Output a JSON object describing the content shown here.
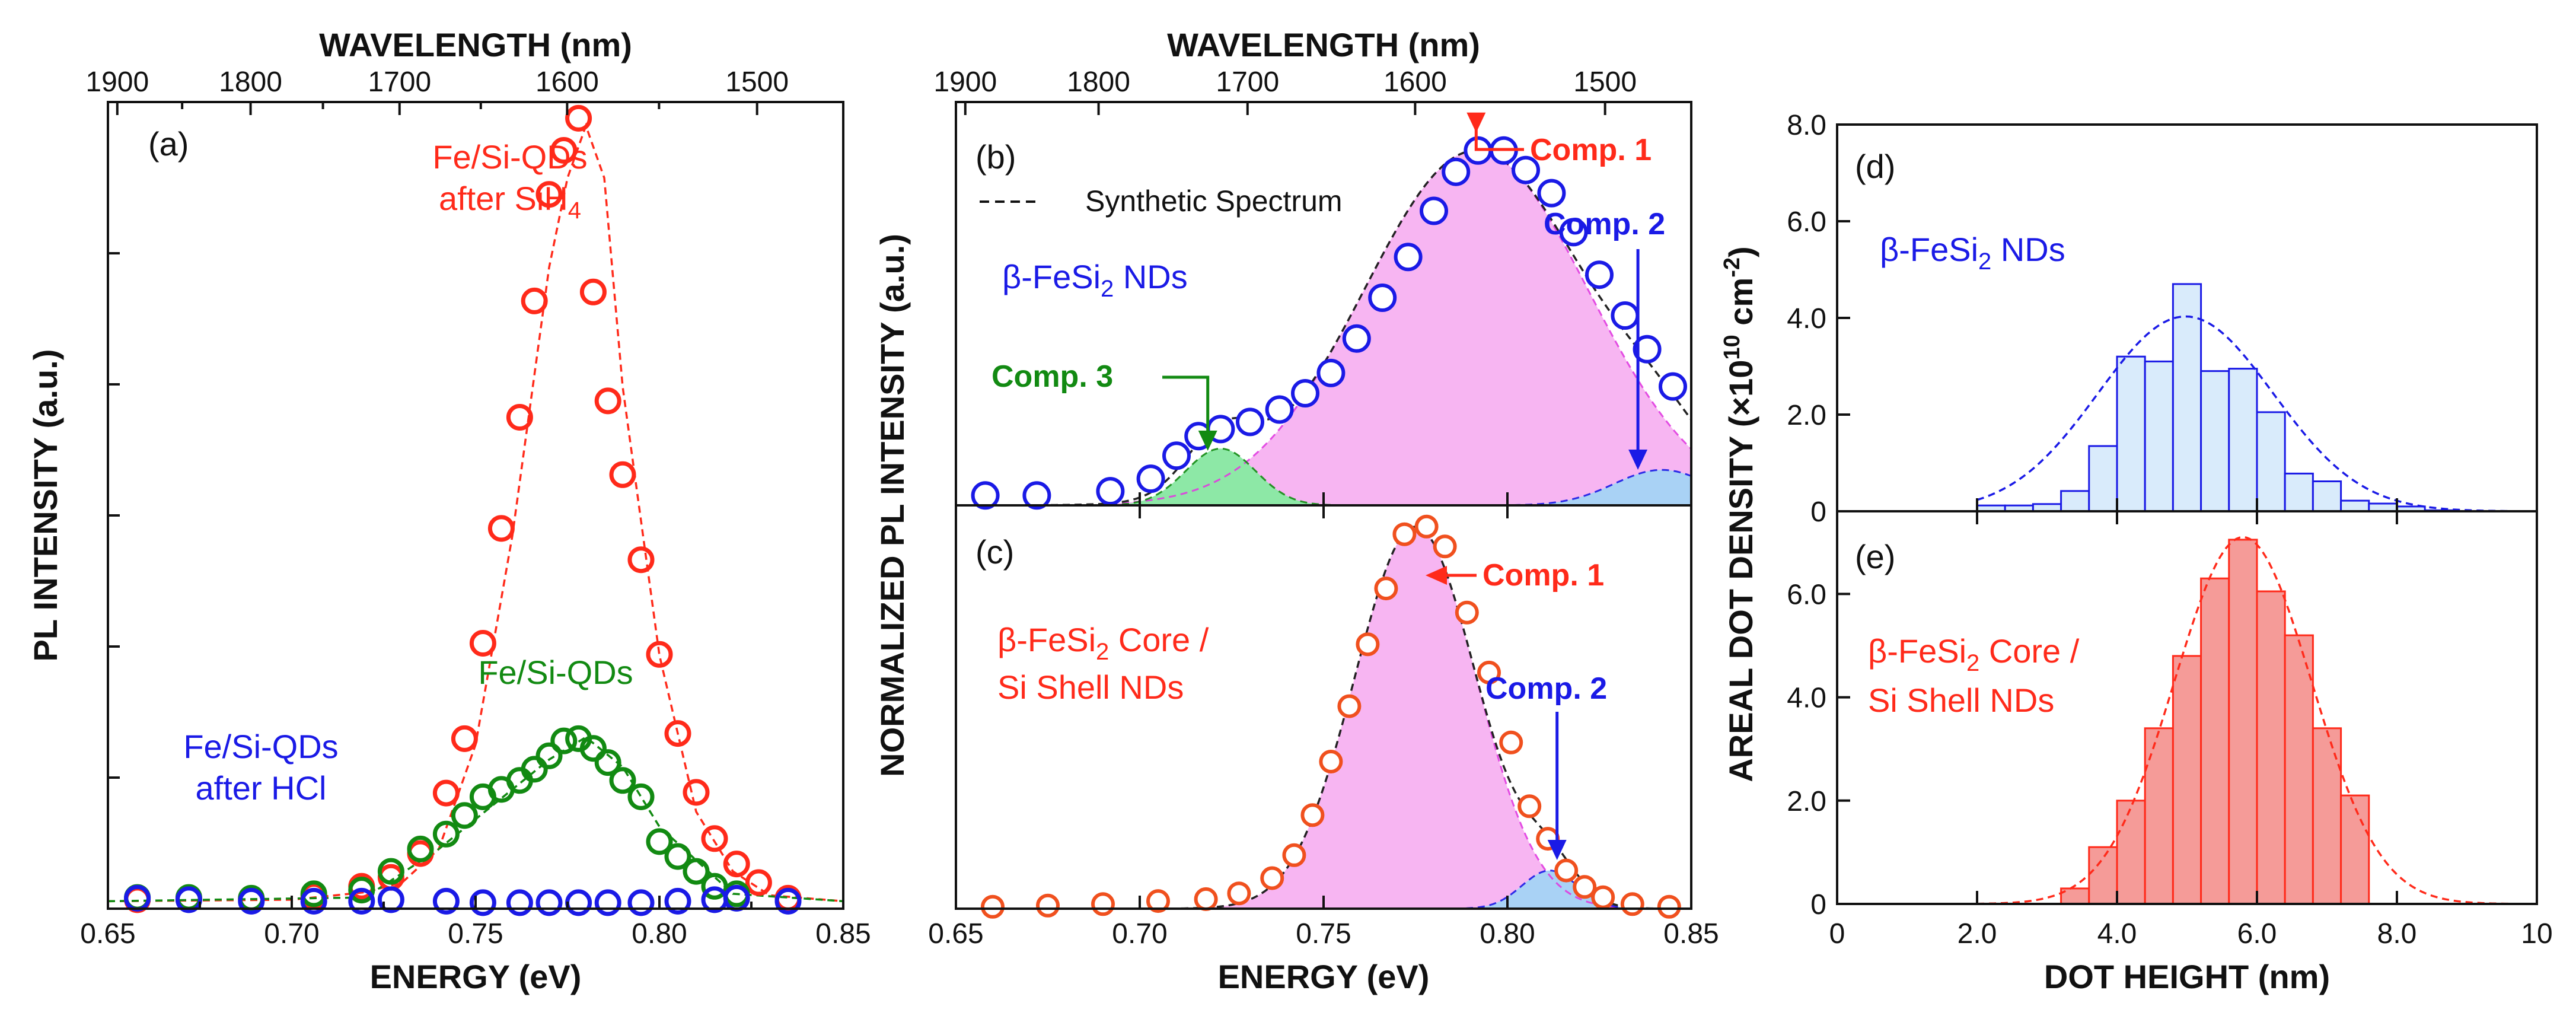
{
  "colors": {
    "red": "#ff2a1a",
    "red_marker": "#f0501e",
    "green": "#128a12",
    "blue": "#1a1ae6",
    "pink_fill": "#f7b5f2",
    "green_fill": "#8de8a6",
    "blue_fill": "#a9d2f5",
    "hist_blue_fill": "#d9ebfb",
    "hist_red_fill": "#f59b98"
  },
  "chart_data": [
    {
      "id": "a",
      "type": "scatter",
      "panel_label": "(a)",
      "xlabel": "ENERGY (eV)",
      "ylabel": "PL INTENSITY (a.u.)",
      "top_xlabel": "WAVELENGTH (nm)",
      "xlim": [
        0.65,
        0.85
      ],
      "ylim": [
        0,
        1.05
      ],
      "x_ticks": [
        "0.65",
        "0.70",
        "0.75",
        "0.80",
        "0.85"
      ],
      "top_ticks": [
        "1900",
        "1800",
        "1700",
        "1600",
        "1500"
      ],
      "series": [
        {
          "name": "Fe/Si-QDs after SiH4",
          "label_line1": "Fe/Si-QDs",
          "label_line2": "after SiH",
          "label_sub": "4",
          "color": "red",
          "x": [
            0.658,
            0.672,
            0.689,
            0.706,
            0.719,
            0.727,
            0.735,
            0.742,
            0.747,
            0.752,
            0.757,
            0.762,
            0.766,
            0.77,
            0.774,
            0.778,
            0.782,
            0.786,
            0.79,
            0.795,
            0.8,
            0.805,
            0.81,
            0.815,
            0.821,
            0.827,
            0.835
          ],
          "y": [
            0.012,
            0.013,
            0.012,
            0.017,
            0.03,
            0.042,
            0.074,
            0.155,
            0.228,
            0.356,
            0.51,
            0.659,
            0.815,
            0.958,
            1.017,
            1.06,
            0.827,
            0.681,
            0.582,
            0.468,
            0.341,
            0.235,
            0.156,
            0.094,
            0.06,
            0.035,
            0.014
          ],
          "fit_x": [
            0.65,
            0.7,
            0.72,
            0.73,
            0.74,
            0.75,
            0.76,
            0.77,
            0.775,
            0.78,
            0.785,
            0.79,
            0.8,
            0.81,
            0.82,
            0.83,
            0.85
          ],
          "fit_y": [
            0.01,
            0.012,
            0.022,
            0.035,
            0.08,
            0.22,
            0.5,
            0.86,
            0.98,
            1.05,
            0.98,
            0.7,
            0.34,
            0.13,
            0.05,
            0.018,
            0.01
          ]
        },
        {
          "name": "Fe/Si-QDs",
          "label_line1": "Fe/Si-QDs",
          "color": "green",
          "x": [
            0.658,
            0.672,
            0.689,
            0.706,
            0.719,
            0.727,
            0.735,
            0.742,
            0.747,
            0.752,
            0.757,
            0.762,
            0.766,
            0.77,
            0.774,
            0.778,
            0.782,
            0.786,
            0.79,
            0.795,
            0.8,
            0.805,
            0.81,
            0.815,
            0.821
          ],
          "y": [
            0.015,
            0.015,
            0.014,
            0.02,
            0.025,
            0.05,
            0.08,
            0.1,
            0.125,
            0.15,
            0.16,
            0.172,
            0.187,
            0.205,
            0.225,
            0.228,
            0.215,
            0.196,
            0.172,
            0.15,
            0.09,
            0.07,
            0.05,
            0.03,
            0.02
          ],
          "fit_x": [
            0.65,
            0.72,
            0.74,
            0.76,
            0.77,
            0.78,
            0.79,
            0.8,
            0.82,
            0.85
          ],
          "fit_y": [
            0.01,
            0.015,
            0.08,
            0.16,
            0.2,
            0.23,
            0.19,
            0.11,
            0.02,
            0.01
          ]
        },
        {
          "name": "Fe/Si-QDs after HCl",
          "label_line1": "Fe/Si-QDs",
          "label_line2": "after HCl",
          "color": "blue",
          "x": [
            0.658,
            0.672,
            0.689,
            0.706,
            0.719,
            0.727,
            0.742,
            0.752,
            0.762,
            0.77,
            0.778,
            0.786,
            0.795,
            0.805,
            0.815,
            0.821,
            0.835
          ],
          "y": [
            0.014,
            0.012,
            0.01,
            0.01,
            0.01,
            0.012,
            0.01,
            0.008,
            0.008,
            0.008,
            0.008,
            0.008,
            0.008,
            0.01,
            0.012,
            0.014,
            0.01
          ]
        }
      ]
    },
    {
      "id": "b",
      "type": "scatter",
      "panel_label": "(b)",
      "top_xlabel": "WAVELENGTH (nm)",
      "shared_ylabel": "NORMALIZED PL INTENSITY (a.u.)",
      "xlim": [
        0.65,
        0.85
      ],
      "ylim": [
        0,
        1.12
      ],
      "top_ticks": [
        "1900",
        "1800",
        "1700",
        "1600",
        "1500"
      ],
      "material": "β-FeSi",
      "material_sub": "2",
      "material_rest": " NDs",
      "legend_text": "Synthetic  Spectrum",
      "markers": {
        "color": "blue",
        "x": [
          0.658,
          0.672,
          0.692,
          0.703,
          0.71,
          0.716,
          0.722,
          0.73,
          0.738,
          0.745,
          0.752,
          0.759,
          0.766,
          0.773,
          0.78,
          0.786,
          0.792,
          0.799,
          0.805,
          0.812,
          0.818,
          0.825,
          0.832,
          0.838,
          0.845
        ],
        "y": [
          0.028,
          0.028,
          0.04,
          0.075,
          0.14,
          0.195,
          0.215,
          0.235,
          0.27,
          0.316,
          0.373,
          0.47,
          0.585,
          0.7,
          0.83,
          0.94,
          1.0,
          1.0,
          0.945,
          0.88,
          0.77,
          0.65,
          0.535,
          0.44,
          0.335
        ]
      },
      "components": [
        {
          "name": "Comp. 1",
          "color": "red",
          "arrow_color": "red",
          "fill": "pink_fill",
          "center": 0.7915,
          "amplitude": 1.0,
          "sigma": 0.0305
        },
        {
          "name": "Comp. 2",
          "color": "blue",
          "arrow_color": "blue",
          "fill": "blue_fill",
          "center": 0.842,
          "amplitude": 0.1,
          "sigma": 0.013
        },
        {
          "name": "Comp. 3",
          "color": "green",
          "arrow_color": "green",
          "fill": "green_fill",
          "center": 0.722,
          "amplitude": 0.16,
          "sigma": 0.0095
        }
      ]
    },
    {
      "id": "c",
      "type": "scatter",
      "panel_label": "(c)",
      "xlabel": "ENERGY (eV)",
      "xlim": [
        0.65,
        0.85
      ],
      "ylim": [
        0,
        1.04
      ],
      "x_ticks": [
        "0.65",
        "0.70",
        "0.75",
        "0.80",
        "0.85"
      ],
      "material": "β-FeSi",
      "material_sub": "2",
      "material_rest": " Core /",
      "material_line2": "Si Shell NDs",
      "markers": {
        "color": "red_marker",
        "x": [
          0.66,
          0.675,
          0.69,
          0.705,
          0.718,
          0.727,
          0.736,
          0.742,
          0.747,
          0.752,
          0.757,
          0.762,
          0.767,
          0.772,
          0.778,
          0.783,
          0.789,
          0.795,
          0.801,
          0.806,
          0.811,
          0.816,
          0.821,
          0.826,
          0.834,
          0.844
        ],
        "y": [
          0.005,
          0.008,
          0.012,
          0.02,
          0.025,
          0.04,
          0.08,
          0.14,
          0.245,
          0.385,
          0.53,
          0.692,
          0.838,
          0.98,
          1.0,
          0.948,
          0.775,
          0.618,
          0.435,
          0.268,
          0.183,
          0.1,
          0.057,
          0.03,
          0.012,
          0.005
        ]
      },
      "components": [
        {
          "name": "Comp. 1",
          "color": "red",
          "arrow_color": "red",
          "fill": "pink_fill",
          "center": 0.775,
          "amplitude": 1.0,
          "sigma": 0.0165
        },
        {
          "name": "Comp. 2",
          "color": "blue",
          "arrow_color": "blue",
          "fill": "blue_fill",
          "center": 0.8115,
          "amplitude": 0.1,
          "sigma": 0.0075
        }
      ]
    },
    {
      "id": "d",
      "type": "bar",
      "panel_label": "(d)",
      "ylabel": "AREAL DOT DENSITY (×10",
      "ylabel_sup": "10",
      "ylabel_unit": " cm",
      "ylabel_sup2": "-2",
      "ylabel_end": ")",
      "ylim": [
        0,
        8
      ],
      "y_ticks": [
        "0",
        "2.0",
        "4.0",
        "6.0",
        "8.0"
      ],
      "xlim": [
        0,
        10
      ],
      "material": "β-FeSi",
      "material_sub": "2",
      "material_rest": " NDs",
      "bin_edges": [
        2.0,
        2.4,
        2.8,
        3.2,
        3.6,
        4.0,
        4.4,
        4.8,
        5.2,
        5.6,
        6.0,
        6.4,
        6.8,
        7.2,
        7.6,
        8.0,
        8.4,
        8.8
      ],
      "values": [
        0.12,
        0.12,
        0.15,
        0.42,
        1.35,
        3.2,
        3.1,
        4.7,
        2.9,
        2.95,
        2.05,
        0.78,
        0.62,
        0.22,
        0.16,
        0.1,
        0.02
      ],
      "fit": {
        "type": "gaussian",
        "color": "blue",
        "center": 4.98,
        "amplitude": 4.03,
        "sigma": 1.25
      }
    },
    {
      "id": "e",
      "type": "bar",
      "panel_label": "(e)",
      "xlabel": "DOT HEIGHT (nm)",
      "ylim": [
        0,
        7.6
      ],
      "y_ticks": [
        "0",
        "2.0",
        "4.0",
        "6.0"
      ],
      "xlim": [
        0,
        10
      ],
      "x_ticks": [
        "0",
        "2.0",
        "4.0",
        "6.0",
        "8.0",
        "10"
      ],
      "material": "β-FeSi",
      "material_sub": "2",
      "material_rest": " Core /",
      "material_line2": "Si Shell NDs",
      "bin_edges": [
        3.2,
        3.6,
        4.0,
        4.4,
        4.8,
        5.2,
        5.6,
        6.0,
        6.4,
        6.8,
        7.2,
        7.6
      ],
      "values": [
        0.3,
        1.1,
        2.0,
        3.4,
        4.8,
        6.3,
        7.05,
        6.05,
        5.2,
        3.4,
        2.1
      ],
      "fit": {
        "type": "gaussian",
        "color": "red",
        "center": 5.8,
        "amplitude": 7.1,
        "sigma": 0.98
      }
    }
  ]
}
